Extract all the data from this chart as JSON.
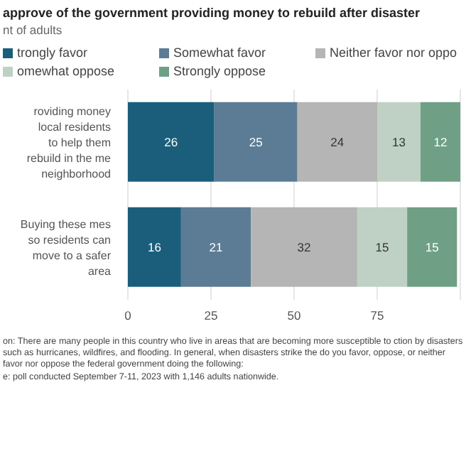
{
  "chart_data": {
    "type": "bar",
    "orientation": "horizontal",
    "stacked": true,
    "title": "approve of the government providing money to rebuild after disaster",
    "subtitle": "nt of adults",
    "categories": [
      "roviding money local residents to help them rebuild in the me neighborhood",
      "Buying these mes so residents can move to a safer area"
    ],
    "series": [
      {
        "name": "trongly favor",
        "color": "#1b5e7b",
        "values": [
          26,
          16
        ]
      },
      {
        "name": "Somewhat favor",
        "color": "#5b7c94",
        "values": [
          25,
          21
        ]
      },
      {
        "name": "Neither favor nor oppo",
        "color": "#b5b5b5",
        "values": [
          24,
          32
        ]
      },
      {
        "name": "omewhat oppose",
        "color": "#bfd1c4",
        "values": [
          13,
          15
        ]
      },
      {
        "name": "Strongly oppose",
        "color": "#6fa086",
        "values": [
          12,
          15
        ]
      }
    ],
    "xlim": [
      0,
      100
    ],
    "xticks": [
      0,
      25,
      50,
      75
    ],
    "grid": "x",
    "legend": "top left",
    "data_labels": true,
    "annotations": [
      "on: There are many people in this country who live in areas that are becoming more susceptible to ction by disasters such as hurricanes, wildfires, and flooding. In general, when disasters strike the do you favor, oppose, or neither favor nor oppose the federal government doing the following:",
      "e: poll conducted September 7-11, 2023 with 1,146 adults nationwide."
    ]
  }
}
